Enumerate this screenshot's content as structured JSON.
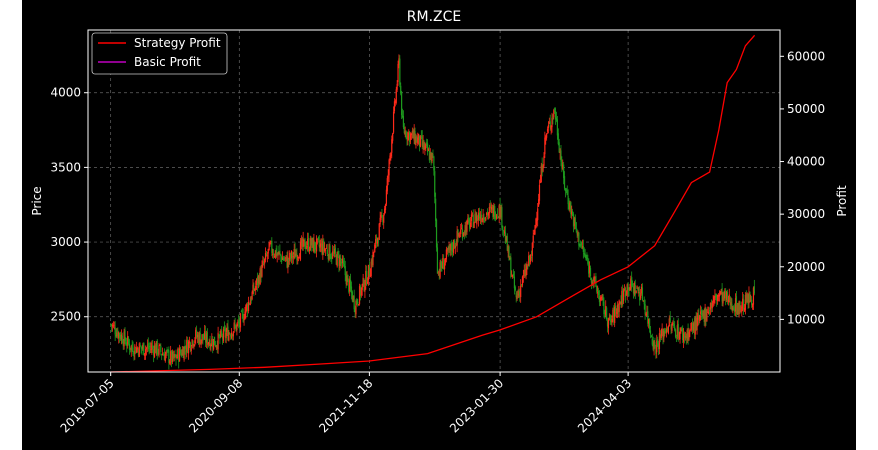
{
  "chart_data": {
    "type": "line",
    "title": "RM.ZCE",
    "xlabel": "",
    "ylabel_left": "Price",
    "ylabel_right": "Profit",
    "x_ticks": [
      "2019-07-05",
      "2020-09-08",
      "2021-11-18",
      "2023-01-30",
      "2024-04-03"
    ],
    "y_left_ticks": [
      2500,
      3000,
      3500,
      4000
    ],
    "y_left_range": [
      2130,
      4420
    ],
    "y_right_ticks": [
      10000,
      20000,
      30000,
      40000,
      50000,
      60000
    ],
    "y_right_range": [
      0,
      65000
    ],
    "grid": true,
    "legend_position": "top-left",
    "background": "#000000",
    "colors": {
      "strategy": "#ff0000",
      "basic": "#bf00bf",
      "candle_up": "#ff2a1a",
      "candle_down": "#1e9a1e",
      "text": "#ffffff",
      "grid": "#666666"
    },
    "price_anchors": {
      "x": [
        "2019-07-05",
        "2019-09-15",
        "2019-12-01",
        "2020-02-01",
        "2020-04-15",
        "2020-06-20",
        "2020-09-08",
        "2020-11-01",
        "2020-12-20",
        "2021-02-15",
        "2021-04-20",
        "2021-06-20",
        "2021-08-15",
        "2021-10-01",
        "2021-11-18",
        "2022-01-10",
        "2022-02-25",
        "2022-03-10",
        "2022-05-01",
        "2022-06-20",
        "2022-07-05",
        "2022-09-20",
        "2022-11-20",
        "2023-01-30",
        "2023-03-25",
        "2023-05-15",
        "2023-07-01",
        "2023-08-01",
        "2023-09-01",
        "2023-10-15",
        "2023-12-20",
        "2024-02-01",
        "2024-04-03",
        "2024-05-20",
        "2024-07-01",
        "2024-08-15",
        "2024-10-10",
        "2024-12-01",
        "2025-02-01",
        "2025-04-10",
        "2025-06-01"
      ],
      "y": [
        2450,
        2290,
        2290,
        2210,
        2370,
        2330,
        2450,
        2700,
        2960,
        2870,
        2990,
        2960,
        2870,
        2580,
        2810,
        3250,
        4200,
        3750,
        3680,
        3550,
        2790,
        3070,
        3180,
        3220,
        2620,
        2910,
        3700,
        3890,
        3400,
        3050,
        2680,
        2450,
        2720,
        2650,
        2290,
        2450,
        2370,
        2480,
        2650,
        2560,
        2650
      ]
    },
    "series": [
      {
        "name": "Strategy Profit",
        "x": [
          "2019-07-05",
          "2019-12-01",
          "2020-06-01",
          "2020-12-01",
          "2021-06-01",
          "2021-11-18",
          "2022-06-01",
          "2022-12-01",
          "2023-01-30",
          "2023-06-01",
          "2023-10-01",
          "2024-01-01",
          "2024-04-03",
          "2024-07-01",
          "2024-09-01",
          "2024-11-01",
          "2025-01-01",
          "2025-02-01",
          "2025-03-01",
          "2025-04-01",
          "2025-05-01",
          "2025-06-01"
        ],
        "y": [
          0,
          200,
          500,
          900,
          1500,
          2100,
          3500,
          7000,
          8000,
          10500,
          14500,
          17500,
          20000,
          24000,
          30000,
          36000,
          38000,
          46000,
          55000,
          57500,
          62000,
          64000
        ]
      },
      {
        "name": "Basic Profit",
        "x": [],
        "y": []
      }
    ]
  }
}
